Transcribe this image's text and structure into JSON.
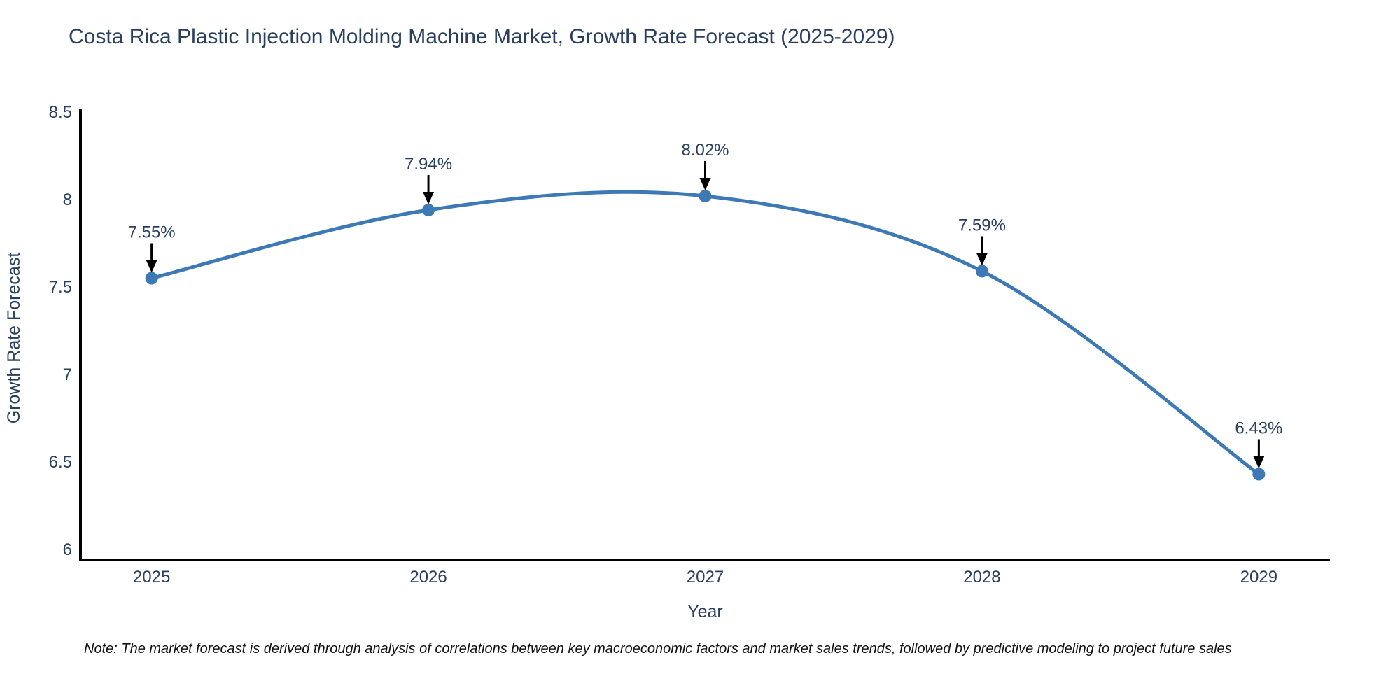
{
  "title": "Costa Rica Plastic Injection Molding Machine Market, Growth Rate Forecast (2025-2029)",
  "note": "Note: The market forecast is derived through analysis of correlations between key macroeconomic factors and market sales trends, followed by predictive modeling to project future sales",
  "chart_data": {
    "type": "line",
    "line_shape": "spline",
    "x": [
      2025,
      2026,
      2027,
      2028,
      2029
    ],
    "categories": [
      "2025",
      "2026",
      "2027",
      "2028",
      "2029"
    ],
    "series": [
      {
        "name": "Growth Rate Forecast",
        "values": [
          7.55,
          7.94,
          8.02,
          7.59,
          6.43
        ],
        "point_labels": [
          "7.55%",
          "7.94%",
          "8.02%",
          "7.59%",
          "6.43%"
        ]
      }
    ],
    "xlabel": "Year",
    "ylabel": "Growth Rate Forecast",
    "yticks": [
      6,
      6.5,
      7,
      7.5,
      8,
      8.5
    ],
    "ylim": [
      5.94,
      8.52
    ],
    "xlim": [
      2024.743,
      2029.257
    ],
    "grid": false,
    "legend_position": "none",
    "colors": {
      "line": "#3d7ab5",
      "marker": "#3d7ab5",
      "axis": "#000000",
      "tick_text": "#2a3f5f",
      "annotation_text": "#2a3f5f",
      "annotation_arrow": "#000000",
      "title_text": "#2a3f5f",
      "note_text": "#111111",
      "background": "#ffffff"
    }
  }
}
